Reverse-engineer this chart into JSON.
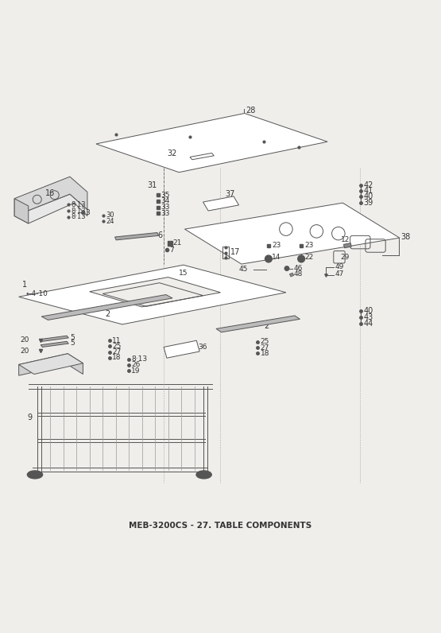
{
  "title": "MEB-3200CS - 27. TABLE COMPONENTS",
  "bg_color": "#f0eeeb",
  "line_color": "#555555",
  "text_color": "#333333"
}
